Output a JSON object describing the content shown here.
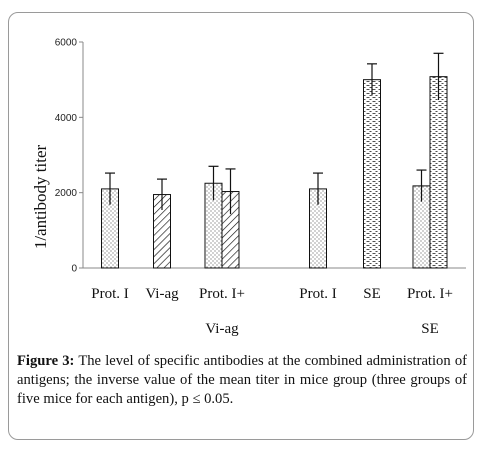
{
  "chart_data": {
    "type": "bar",
    "ylabel": "1/antibody titer",
    "ylim": [
      0,
      6000
    ],
    "yticks": [
      0,
      2000,
      4000,
      6000
    ],
    "grid": false,
    "groups": [
      {
        "label_line1": "Prot. I",
        "label_line2": "",
        "bars": [
          {
            "pattern": "dots",
            "value": 2100,
            "error": 420
          }
        ]
      },
      {
        "label_line1": "Vi-ag",
        "label_line2": "",
        "bars": [
          {
            "pattern": "hatch",
            "value": 1950,
            "error": 410
          }
        ]
      },
      {
        "label_line1": "Prot. I+",
        "label_line2": "Vi-ag",
        "bars": [
          {
            "pattern": "dots",
            "value": 2250,
            "error": 450
          },
          {
            "pattern": "hatch",
            "value": 2030,
            "error": 600
          }
        ]
      },
      {
        "label_line1": "Prot. I",
        "label_line2": "",
        "bars": [
          {
            "pattern": "dots",
            "value": 2100,
            "error": 420
          }
        ]
      },
      {
        "label_line1": "SE",
        "label_line2": "",
        "bars": [
          {
            "pattern": "dashes",
            "value": 5000,
            "error": 420
          }
        ]
      },
      {
        "label_line1": "Prot. I+",
        "label_line2": "SE",
        "bars": [
          {
            "pattern": "dots",
            "value": 2180,
            "error": 420
          },
          {
            "pattern": "dashes",
            "value": 5080,
            "error": 620
          }
        ]
      }
    ]
  },
  "caption": {
    "label": "Figure 3:",
    "text": " The level of specific antibodies at the combined administration of antigens; the inverse value of the mean titer in mice group (three groups of five mice for each antigen), p ≤ 0.05."
  }
}
